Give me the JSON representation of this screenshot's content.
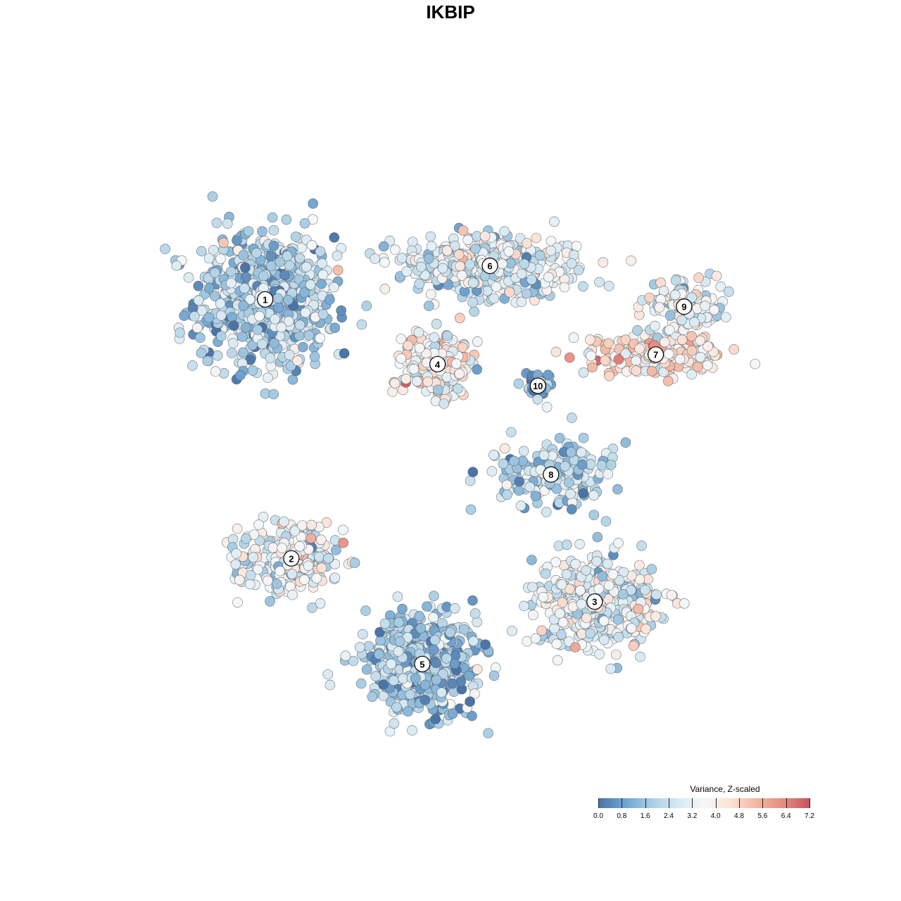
{
  "chart_data": {
    "type": "scatter",
    "title": "IKBIP",
    "xlabel": "",
    "ylabel": "",
    "grid": false,
    "legend_placement": "bottom-right",
    "colorbar": {
      "title": "Variance, Z-scaled",
      "min": 0.0,
      "max": 7.2,
      "ticks": [
        "0.0",
        "0.8",
        "1.6",
        "2.4",
        "3.2",
        "4.0",
        "4.8",
        "5.6",
        "6.4",
        "7.2"
      ],
      "colors": [
        "#4a74a8",
        "#6fa3cf",
        "#a8cde4",
        "#d6e8f2",
        "#f5f7f9",
        "#fbe2d6",
        "#f2b5a0",
        "#e68b80",
        "#c6535e"
      ]
    },
    "clusters": [
      {
        "label": "1",
        "x": -9.8,
        "y": 6.3,
        "sx": 2.9,
        "sy": 2.6,
        "n": 700,
        "mean": 2.0
      },
      {
        "label": "2",
        "x": -8.6,
        "y": -4.5,
        "sx": 2.2,
        "sy": 1.4,
        "n": 260,
        "mean": 3.2
      },
      {
        "label": "3",
        "x": 5.3,
        "y": -6.3,
        "sx": 2.6,
        "sy": 1.7,
        "n": 420,
        "mean": 3.1
      },
      {
        "label": "4",
        "x": -1.9,
        "y": 3.6,
        "sx": 1.4,
        "sy": 1.2,
        "n": 260,
        "mean": 3.7
      },
      {
        "label": "5",
        "x": -2.6,
        "y": -8.9,
        "sx": 2.3,
        "sy": 1.7,
        "n": 560,
        "mean": 1.7
      },
      {
        "label": "6",
        "x": 0.5,
        "y": 7.7,
        "sx": 3.6,
        "sy": 1.1,
        "n": 460,
        "mean": 2.8
      },
      {
        "label": "7",
        "x": 8.1,
        "y": 4.0,
        "sx": 2.7,
        "sy": 0.8,
        "n": 230,
        "mean": 4.4
      },
      {
        "label": "8",
        "x": 3.3,
        "y": -1.0,
        "sx": 2.4,
        "sy": 1.3,
        "n": 200,
        "mean": 2.2
      },
      {
        "label": "9",
        "x": 9.4,
        "y": 6.0,
        "sx": 1.6,
        "sy": 0.9,
        "n": 140,
        "mean": 3.3
      },
      {
        "label": "10",
        "x": 2.7,
        "y": 2.7,
        "sx": 0.5,
        "sy": 0.5,
        "n": 45,
        "mean": 1.4
      }
    ],
    "xlim": [
      -15.5,
      14.5
    ],
    "ylim": [
      -13.5,
      13.5
    ]
  }
}
